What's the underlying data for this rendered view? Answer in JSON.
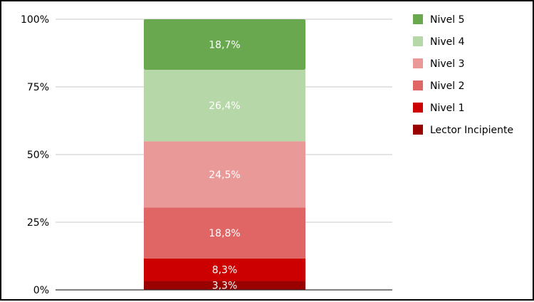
{
  "chart_data": {
    "type": "bar",
    "stacked": true,
    "categories": [
      ""
    ],
    "series": [
      {
        "name": "Lector Incipiente",
        "values": [
          3.3
        ],
        "label": "3,3%",
        "color": "#990000"
      },
      {
        "name": "Nivel 1",
        "values": [
          8.3
        ],
        "label": "8,3%",
        "color": "#cc0000"
      },
      {
        "name": "Nivel 2",
        "values": [
          18.8
        ],
        "label": "18,8%",
        "color": "#e06666"
      },
      {
        "name": "Nivel 3",
        "values": [
          24.5
        ],
        "label": "24,5%",
        "color": "#ea9999"
      },
      {
        "name": "Nivel 4",
        "values": [
          26.4
        ],
        "label": "26,4%",
        "color": "#b6d7a8"
      },
      {
        "name": "Nivel 5",
        "values": [
          18.7
        ],
        "label": "18,7%",
        "color": "#6aa84f"
      }
    ],
    "ylim": [
      0,
      100
    ],
    "yticks": [
      "0%",
      "25%",
      "50%",
      "75%",
      "100%"
    ],
    "grid": true,
    "legend": "right",
    "title": "",
    "xlabel": "",
    "ylabel": ""
  }
}
